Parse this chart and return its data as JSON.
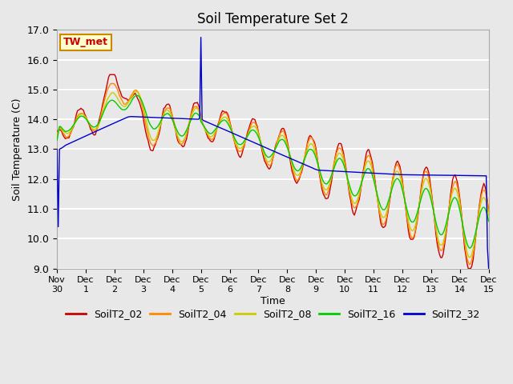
{
  "title": "Soil Temperature Set 2",
  "xlabel": "Time",
  "ylabel": "Soil Temperature (C)",
  "ylim": [
    9.0,
    17.0
  ],
  "yticks": [
    9.0,
    10.0,
    11.0,
    12.0,
    13.0,
    14.0,
    15.0,
    16.0,
    17.0
  ],
  "fig_bg_color": "#e8e8e8",
  "plot_bg_color": "#e8e8e8",
  "grid_color": "#ffffff",
  "series": {
    "SoilT2_02": {
      "color": "#cc0000",
      "lw": 1.0
    },
    "SoilT2_04": {
      "color": "#ff8800",
      "lw": 1.0
    },
    "SoilT2_08": {
      "color": "#cccc00",
      "lw": 1.0
    },
    "SoilT2_16": {
      "color": "#00cc00",
      "lw": 1.0
    },
    "SoilT2_32": {
      "color": "#0000cc",
      "lw": 1.0
    }
  },
  "annotation_label": "TW_met",
  "annotation_color": "#cc0000",
  "annotation_bg": "#ffffcc",
  "annotation_border": "#cc8800",
  "x_tick_labels": [
    "Nov 30",
    "Dec 1",
    "Dec 2",
    "Dec 3",
    "Dec 4",
    "Dec 5",
    "Dec 6",
    "Dec 7",
    "Dec 8",
    "Dec 9",
    "Dec 10",
    "Dec 11",
    "Dec 12",
    "Dec 13",
    "Dec 14",
    "Dec 15"
  ],
  "x_tick_positions": [
    0,
    24,
    48,
    72,
    96,
    120,
    144,
    168,
    192,
    216,
    240,
    264,
    288,
    312,
    336,
    360
  ]
}
